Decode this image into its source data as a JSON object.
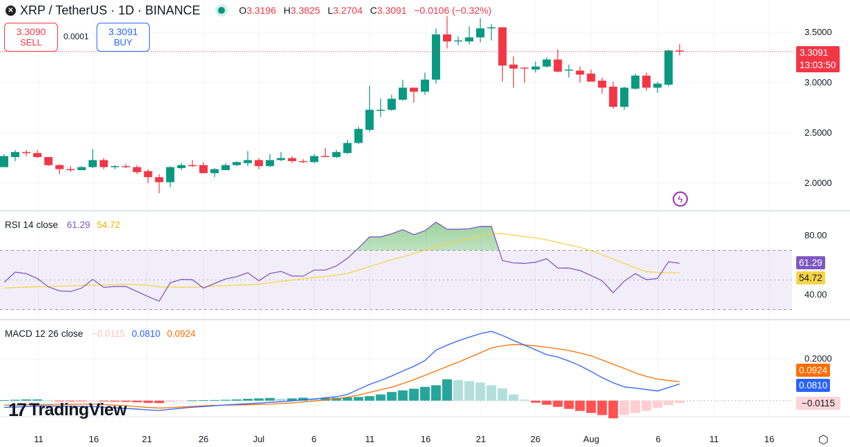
{
  "header": {
    "symbol_title": "XRP / TetherUS · 1D · BINANCE",
    "ohlc": {
      "o_label": "O",
      "o": "3.3196",
      "h_label": "H",
      "h": "3.3825",
      "l_label": "L",
      "l": "3.2704",
      "c_label": "C",
      "c": "3.3091",
      "change": "−0.0106 (−0.32%)"
    }
  },
  "trade": {
    "sell_price": "3.3090",
    "sell_label": "SELL",
    "spread": "0.0001",
    "buy_price": "3.3091",
    "buy_label": "BUY"
  },
  "price_axis": {
    "ticks": [
      "3.5000",
      "3.0000",
      "2.5000",
      "2.0000"
    ],
    "current_price": "3.3091",
    "countdown": "13:03:50"
  },
  "rsi": {
    "label": "RSI",
    "length": "14",
    "source": "close",
    "value": "61.29",
    "ma_value": "54.72",
    "ticks": [
      "80.00",
      "40.00"
    ]
  },
  "macd": {
    "label": "MACD",
    "fast": "12",
    "slow": "26",
    "source": "close",
    "hist_value": "−0.0115",
    "macd_value": "0.0810",
    "signal_value": "0.0924",
    "ticks": [
      "0.2000"
    ]
  },
  "time_axis": {
    "labels": [
      "11",
      "16",
      "21",
      "26",
      "Jul",
      "6",
      "11",
      "16",
      "21",
      "26",
      "Aug",
      "6",
      "11",
      "16"
    ]
  },
  "branding": {
    "logo_text": "TradingView"
  },
  "colors": {
    "up": "#089981",
    "down": "#f23645",
    "rsi": "#7e57c2",
    "rsi_ma": "#f7d348",
    "macd": "#2962ff",
    "signal": "#ff6d00",
    "hist_up": "#26a69a",
    "hist_up_light": "#b2dfdb",
    "hist_down": "#ff5252",
    "hist_down_light": "#ffcdd2"
  },
  "icons": {
    "symbol": "xrp-logo-icon",
    "status": "market-open-dot-icon",
    "alert": "lightning-icon",
    "settings": "gear-icon"
  },
  "chart_data": {
    "type": "candlestick",
    "start_date": "2025-06-08",
    "interval": "1D",
    "ylim": [
      1.78,
      3.8
    ],
    "ohlc": [
      [
        2.16,
        2.29,
        2.16,
        2.27
      ],
      [
        2.26,
        2.33,
        2.22,
        2.31
      ],
      [
        2.31,
        2.33,
        2.27,
        2.3
      ],
      [
        2.3,
        2.33,
        2.25,
        2.26
      ],
      [
        2.26,
        2.26,
        2.17,
        2.18
      ],
      [
        2.18,
        2.19,
        2.09,
        2.14
      ],
      [
        2.14,
        2.17,
        2.11,
        2.13
      ],
      [
        2.13,
        2.17,
        2.13,
        2.16
      ],
      [
        2.16,
        2.34,
        2.15,
        2.23
      ],
      [
        2.23,
        2.25,
        2.14,
        2.16
      ],
      [
        2.16,
        2.18,
        2.14,
        2.17
      ],
      [
        2.17,
        2.19,
        2.15,
        2.16
      ],
      [
        2.16,
        2.18,
        2.09,
        2.11
      ],
      [
        2.12,
        2.14,
        2.0,
        2.06
      ],
      [
        2.06,
        2.09,
        1.9,
        2.01
      ],
      [
        2.01,
        2.17,
        1.96,
        2.16
      ],
      [
        2.15,
        2.2,
        2.13,
        2.18
      ],
      [
        2.18,
        2.23,
        2.16,
        2.17
      ],
      [
        2.18,
        2.21,
        2.1,
        2.1
      ],
      [
        2.1,
        2.15,
        2.06,
        2.14
      ],
      [
        2.13,
        2.2,
        2.13,
        2.18
      ],
      [
        2.18,
        2.22,
        2.17,
        2.21
      ],
      [
        2.2,
        2.32,
        2.17,
        2.23
      ],
      [
        2.23,
        2.25,
        2.14,
        2.17
      ],
      [
        2.17,
        2.29,
        2.16,
        2.23
      ],
      [
        2.23,
        2.31,
        2.22,
        2.25
      ],
      [
        2.25,
        2.27,
        2.2,
        2.22
      ],
      [
        2.22,
        2.24,
        2.2,
        2.21
      ],
      [
        2.21,
        2.29,
        2.2,
        2.27
      ],
      [
        2.27,
        2.35,
        2.26,
        2.26
      ],
      [
        2.26,
        2.33,
        2.25,
        2.31
      ],
      [
        2.3,
        2.43,
        2.29,
        2.4
      ],
      [
        2.4,
        2.56,
        2.39,
        2.54
      ],
      [
        2.53,
        2.97,
        2.51,
        2.73
      ],
      [
        2.72,
        2.84,
        2.66,
        2.73
      ],
      [
        2.73,
        2.88,
        2.72,
        2.84
      ],
      [
        2.83,
        3.03,
        2.82,
        2.95
      ],
      [
        2.95,
        2.95,
        2.8,
        2.91
      ],
      [
        2.91,
        3.1,
        2.88,
        3.03
      ],
      [
        3.03,
        3.54,
        2.99,
        3.48
      ],
      [
        3.48,
        3.66,
        3.34,
        3.41
      ],
      [
        3.41,
        3.46,
        3.37,
        3.42
      ],
      [
        3.41,
        3.56,
        3.38,
        3.45
      ],
      [
        3.45,
        3.64,
        3.4,
        3.54
      ],
      [
        3.54,
        3.58,
        3.42,
        3.55
      ],
      [
        3.55,
        3.55,
        3.01,
        3.17
      ],
      [
        3.18,
        3.26,
        2.95,
        3.14
      ],
      [
        3.15,
        3.15,
        3.0,
        3.14
      ],
      [
        3.13,
        3.21,
        3.1,
        3.16
      ],
      [
        3.16,
        3.25,
        3.15,
        3.23
      ],
      [
        3.23,
        3.33,
        3.1,
        3.11
      ],
      [
        3.12,
        3.18,
        3.05,
        3.13
      ],
      [
        3.12,
        3.16,
        3.0,
        3.08
      ],
      [
        3.09,
        3.13,
        3.01,
        3.01
      ],
      [
        3.02,
        3.05,
        2.89,
        2.95
      ],
      [
        2.96,
        3.01,
        2.74,
        2.76
      ],
      [
        2.76,
        2.96,
        2.73,
        2.95
      ],
      [
        2.94,
        3.09,
        2.93,
        3.07
      ],
      [
        3.07,
        3.1,
        2.92,
        2.95
      ],
      [
        2.95,
        3.01,
        2.9,
        2.99
      ],
      [
        2.98,
        3.33,
        2.96,
        3.32
      ],
      [
        3.3196,
        3.3825,
        3.2704,
        3.3091
      ]
    ],
    "rsi": [
      48.4,
      55.3,
      54.3,
      51.0,
      45.3,
      42.6,
      42.2,
      44.5,
      50.4,
      45.0,
      45.6,
      45.6,
      42.2,
      38.8,
      35.7,
      48.1,
      50.4,
      50.2,
      44.5,
      47.6,
      50.7,
      52.2,
      54.9,
      49.5,
      54.3,
      55.8,
      52.7,
      52.6,
      56.7,
      56.7,
      59.5,
      64.6,
      71.6,
      79.1,
      79.1,
      81.2,
      84.0,
      80.6,
      83.3,
      89.0,
      84.3,
      84.3,
      84.6,
      86.2,
      86.2,
      63.1,
      61.5,
      61.2,
      62.0,
      64.3,
      58.1,
      58.0,
      56.4,
      53.0,
      49.5,
      41.4,
      49.2,
      54.3,
      50.2,
      51.0,
      62.3,
      61.29
    ],
    "rsi_ma": [
      44.6,
      44.9,
      45.2,
      45.5,
      45.6,
      45.8,
      46.0,
      46.3,
      46.5,
      46.7,
      46.9,
      47.1,
      46.8,
      46.5,
      45.3,
      45.2,
      45.1,
      45.0,
      45.4,
      45.8,
      46.1,
      46.5,
      46.8,
      47.2,
      48.1,
      49.0,
      49.9,
      50.9,
      51.6,
      52.4,
      53.2,
      54.4,
      56.7,
      59.0,
      61.3,
      63.7,
      65.6,
      67.9,
      70.2,
      72.5,
      74.5,
      76.2,
      77.8,
      79.5,
      81.2,
      81.3,
      80.3,
      79.3,
      78.3,
      77.1,
      75.4,
      73.7,
      72.0,
      69.9,
      67.0,
      64.1,
      61.2,
      58.3,
      55.6,
      55.1,
      54.9,
      54.72
    ],
    "rsi_levels": [
      70,
      50,
      30
    ],
    "rsi_ylim": [
      20,
      100
    ],
    "macd": [
      -0.033,
      -0.031,
      -0.029,
      -0.026,
      -0.026,
      -0.027,
      -0.027,
      -0.028,
      -0.029,
      -0.032,
      -0.035,
      -0.038,
      -0.041,
      -0.045,
      -0.048,
      -0.042,
      -0.037,
      -0.032,
      -0.029,
      -0.025,
      -0.021,
      -0.018,
      -0.015,
      -0.012,
      -0.008,
      -0.005,
      -0.001,
      0.004,
      0.008,
      0.014,
      0.019,
      0.03,
      0.055,
      0.079,
      0.098,
      0.12,
      0.144,
      0.167,
      0.195,
      0.246,
      0.27,
      0.291,
      0.309,
      0.326,
      0.337,
      0.317,
      0.293,
      0.27,
      0.247,
      0.224,
      0.212,
      0.193,
      0.17,
      0.142,
      0.112,
      0.087,
      0.067,
      0.061,
      0.054,
      0.047,
      0.064,
      0.081
    ],
    "signal": [
      -0.022,
      -0.021,
      -0.02,
      -0.02,
      -0.019,
      -0.018,
      -0.018,
      -0.017,
      -0.017,
      -0.019,
      -0.022,
      -0.025,
      -0.029,
      -0.033,
      -0.036,
      -0.034,
      -0.031,
      -0.028,
      -0.025,
      -0.023,
      -0.022,
      -0.021,
      -0.02,
      -0.018,
      -0.017,
      -0.014,
      -0.011,
      -0.006,
      -0.002,
      0.004,
      0.01,
      0.017,
      0.027,
      0.04,
      0.053,
      0.065,
      0.083,
      0.102,
      0.123,
      0.144,
      0.166,
      0.187,
      0.21,
      0.233,
      0.256,
      0.267,
      0.273,
      0.271,
      0.266,
      0.26,
      0.252,
      0.244,
      0.232,
      0.218,
      0.198,
      0.177,
      0.157,
      0.135,
      0.118,
      0.105,
      0.098,
      0.0924
    ],
    "histogram": [
      0.002,
      0.004,
      0.006,
      0.006,
      0.003,
      -0.001,
      -0.002,
      -0.003,
      -0.002,
      -0.004,
      -0.005,
      -0.006,
      -0.008,
      -0.011,
      -0.012,
      -0.006,
      -0.003,
      0.001,
      0.002,
      0.003,
      0.004,
      0.006,
      0.009,
      0.011,
      0.013,
      0.009,
      0.011,
      0.014,
      0.011,
      0.013,
      0.014,
      0.016,
      0.018,
      0.022,
      0.03,
      0.042,
      0.05,
      0.058,
      0.067,
      0.075,
      0.104,
      0.1,
      0.095,
      0.088,
      0.075,
      0.06,
      0.03,
      0.005,
      -0.01,
      -0.02,
      -0.03,
      -0.04,
      -0.05,
      -0.06,
      -0.07,
      -0.086,
      -0.07,
      -0.06,
      -0.05,
      -0.035,
      -0.022,
      -0.0115
    ]
  }
}
